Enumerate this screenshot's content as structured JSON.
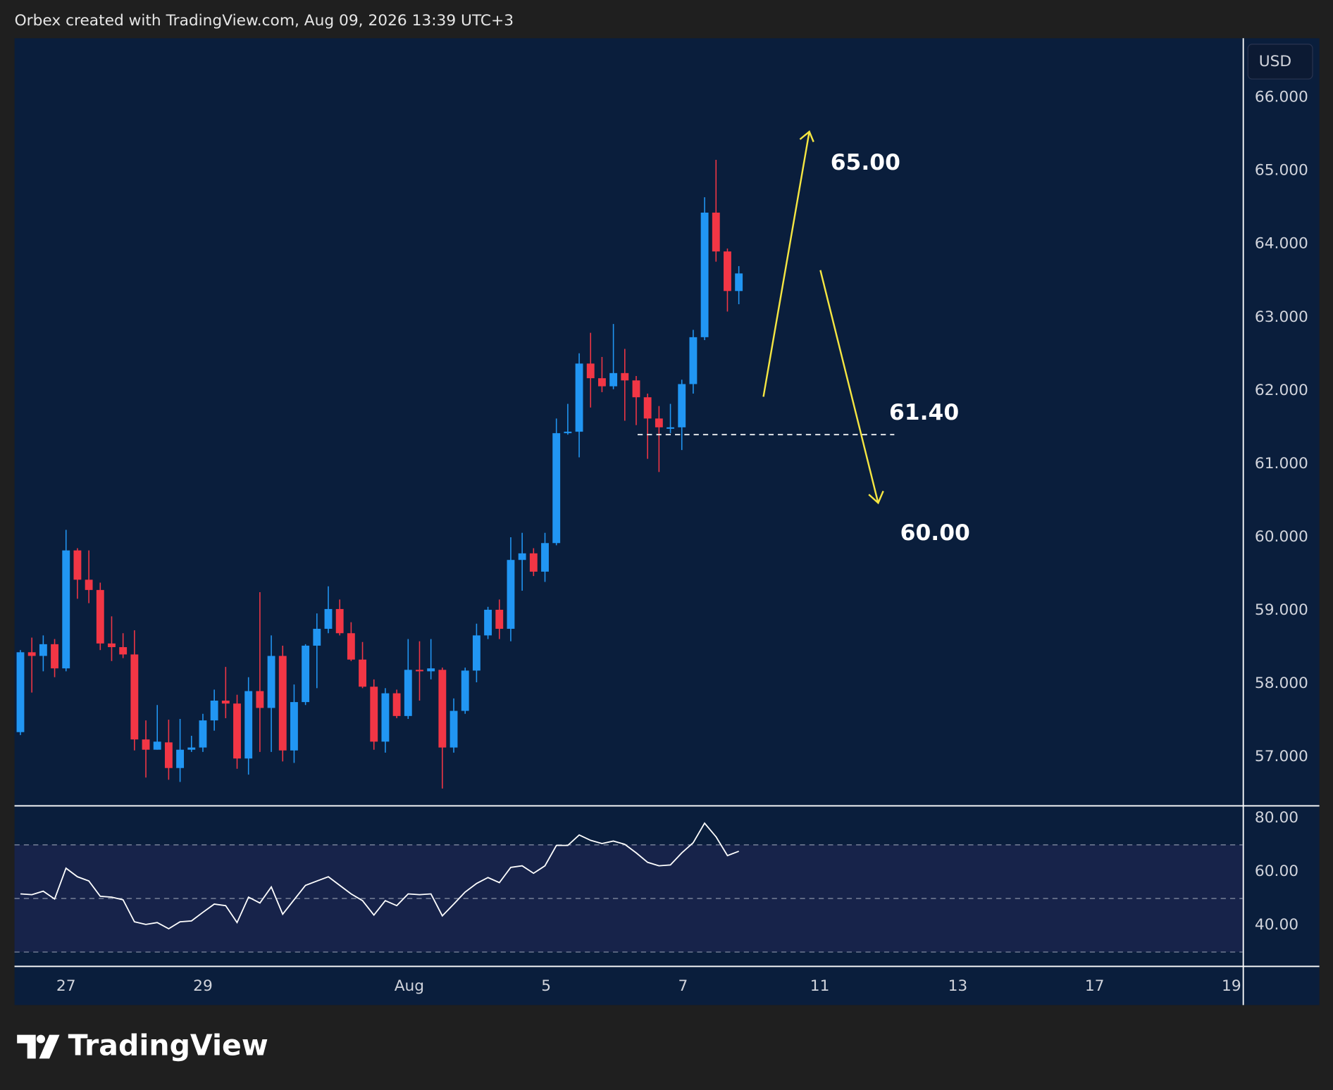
{
  "header": "Orbex created with TradingView.com, Aug 09, 2026 13:39 UTC+3",
  "currency": "USD",
  "logo": "TradingView",
  "chart_data": [
    {
      "type": "candlestick",
      "up_color": "#2196f3",
      "down_color": "#f23645",
      "open": [
        57.34,
        58.43,
        58.38,
        58.54,
        58.21,
        59.82,
        59.42,
        59.28,
        58.55,
        58.5,
        58.4,
        57.24,
        57.1,
        57.2,
        56.85,
        57.1,
        57.13,
        57.5,
        57.77,
        57.73,
        56.98,
        57.9,
        57.67,
        58.38,
        57.09,
        57.75,
        58.52,
        58.75,
        59.02,
        58.69,
        58.33,
        57.96,
        57.21,
        57.87,
        57.56,
        58.19,
        58.17,
        58.19,
        57.13,
        57.63,
        58.18,
        58.66,
        59.01,
        58.75,
        59.69,
        59.78,
        59.53,
        59.92,
        61.42,
        61.44,
        62.37,
        62.17,
        62.06,
        62.24,
        62.14,
        61.91,
        61.62,
        61.48,
        61.5,
        62.09,
        62.73,
        64.43,
        63.9,
        63.36
      ],
      "high": [
        58.46,
        58.63,
        58.66,
        58.61,
        60.1,
        59.85,
        59.82,
        59.38,
        58.92,
        58.69,
        58.73,
        57.5,
        57.71,
        57.51,
        57.52,
        57.29,
        57.59,
        57.92,
        58.23,
        57.85,
        58.09,
        59.25,
        58.66,
        58.52,
        57.99,
        58.54,
        58.96,
        59.33,
        59.15,
        58.84,
        58.57,
        58.06,
        57.94,
        57.92,
        58.61,
        58.58,
        58.61,
        58.22,
        57.8,
        58.22,
        58.82,
        59.05,
        59.15,
        60.0,
        60.06,
        59.85,
        60.06,
        61.62,
        61.82,
        62.51,
        62.79,
        62.46,
        62.91,
        62.57,
        62.2,
        61.96,
        61.79,
        61.82,
        62.15,
        62.83,
        64.64,
        65.15,
        63.94,
        63.7
      ],
      "low": [
        57.3,
        57.88,
        58.17,
        58.09,
        58.17,
        59.16,
        59.1,
        58.46,
        58.31,
        58.35,
        57.09,
        56.72,
        57.1,
        56.69,
        56.66,
        57.07,
        57.07,
        57.36,
        57.53,
        56.84,
        56.76,
        57.07,
        57.07,
        56.94,
        56.92,
        57.71,
        57.94,
        58.69,
        58.66,
        58.31,
        57.94,
        57.1,
        57.06,
        57.53,
        57.52,
        57.77,
        58.06,
        56.57,
        57.06,
        57.59,
        58.02,
        58.61,
        58.61,
        58.58,
        59.27,
        59.47,
        59.39,
        59.89,
        61.4,
        61.09,
        61.77,
        61.98,
        62.02,
        61.59,
        61.53,
        61.07,
        60.89,
        61.42,
        61.19,
        61.96,
        62.69,
        63.76,
        63.08,
        63.18
      ],
      "close": [
        58.43,
        58.38,
        58.54,
        58.21,
        59.82,
        59.42,
        59.28,
        58.55,
        58.5,
        58.4,
        57.24,
        57.1,
        57.21,
        56.85,
        57.1,
        57.13,
        57.5,
        57.77,
        57.73,
        56.98,
        57.9,
        57.67,
        58.38,
        57.09,
        57.75,
        58.52,
        58.75,
        59.02,
        58.69,
        58.33,
        57.96,
        57.21,
        57.87,
        57.56,
        58.19,
        58.17,
        58.21,
        57.13,
        57.63,
        58.18,
        58.66,
        59.01,
        58.75,
        59.69,
        59.78,
        59.53,
        59.92,
        61.42,
        61.44,
        62.37,
        62.17,
        62.06,
        62.24,
        62.14,
        61.91,
        61.62,
        61.5,
        61.5,
        62.09,
        62.73,
        64.43,
        63.9,
        63.36,
        63.6
      ],
      "xlim": [
        -0.52,
        107.2
      ],
      "xticks": [
        {
          "value": 4,
          "label": "27"
        },
        {
          "value": 16,
          "label": "29"
        },
        {
          "value": 34.1,
          "label": "Aug"
        },
        {
          "value": 46.1,
          "label": "5"
        },
        {
          "value": 58.1,
          "label": "7"
        },
        {
          "value": 70.1,
          "label": "11"
        },
        {
          "value": 82.2,
          "label": "13"
        },
        {
          "value": 94.2,
          "label": "17"
        },
        {
          "value": 106.2,
          "label": "19"
        }
      ],
      "ylim": [
        56.34,
        66.81
      ],
      "yticks": [
        {
          "value": 57,
          "label": "57.000"
        },
        {
          "value": 58,
          "label": "58.000"
        },
        {
          "value": 59,
          "label": "59.000"
        },
        {
          "value": 60,
          "label": "60.000"
        },
        {
          "value": 61,
          "label": "61.000"
        },
        {
          "value": 62,
          "label": "62.000"
        },
        {
          "value": 63,
          "label": "63.000"
        },
        {
          "value": 64,
          "label": "64.000"
        },
        {
          "value": 65,
          "label": "65.000"
        },
        {
          "value": 66,
          "label": "66.000"
        }
      ],
      "annotations": [
        {
          "value": 65,
          "label": "65.00"
        },
        {
          "value": 61.4,
          "label": "61.40"
        },
        {
          "value": 60,
          "label": "60.00"
        }
      ]
    },
    {
      "type": "line",
      "color": "#ffffff",
      "values": [
        51.7,
        51.4,
        52.7,
        49.8,
        61.3,
        58.1,
        56.5,
        50.8,
        50.5,
        49.5,
        41.3,
        40.3,
        41.0,
        38.7,
        41.3,
        41.6,
        44.8,
        47.9,
        47.3,
        41.0,
        50.5,
        48.3,
        54.3,
        44.1,
        49.5,
        54.9,
        56.5,
        58.1,
        54.9,
        51.7,
        49.2,
        43.8,
        49.2,
        47.3,
        51.7,
        51.4,
        51.7,
        43.5,
        47.9,
        52.4,
        55.6,
        57.8,
        55.9,
        61.6,
        62.2,
        59.4,
        62.2,
        69.8,
        69.8,
        73.7,
        71.7,
        70.5,
        71.4,
        70.2,
        67.0,
        63.5,
        62.2,
        62.5,
        67.0,
        70.8,
        78.1,
        73.0,
        66.0,
        67.6
      ],
      "ylim": [
        24.8,
        84.1
      ],
      "yticks": [
        {
          "value": 40,
          "label": "40.00"
        },
        {
          "value": 60,
          "label": "60.00"
        },
        {
          "value": 80,
          "label": "80.00"
        }
      ],
      "levels": [
        70,
        50,
        30
      ],
      "band_color": "#17234a"
    }
  ]
}
